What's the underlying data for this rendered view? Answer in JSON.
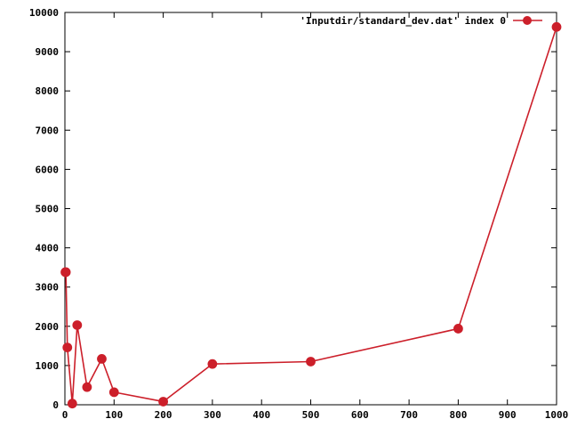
{
  "chart_data": {
    "type": "line",
    "xlim": [
      0,
      1000
    ],
    "ylim": [
      0,
      10000
    ],
    "x_ticks": [
      0,
      100,
      200,
      300,
      400,
      500,
      600,
      700,
      800,
      900,
      1000
    ],
    "y_ticks": [
      0,
      1000,
      2000,
      3000,
      4000,
      5000,
      6000,
      7000,
      8000,
      9000,
      10000
    ],
    "grid": false,
    "legend_position": "top-right",
    "series": [
      {
        "name": "'Inputdir/standard_dev.dat' index 0",
        "color": "#cc1f2a",
        "marker": "circle",
        "x": [
          1,
          2,
          5,
          15,
          25,
          45,
          75,
          100,
          200,
          300,
          500,
          800,
          1000
        ],
        "y": [
          3380,
          3380,
          1460,
          30,
          2030,
          450,
          1170,
          320,
          80,
          1040,
          1100,
          1940,
          9630
        ]
      }
    ]
  }
}
